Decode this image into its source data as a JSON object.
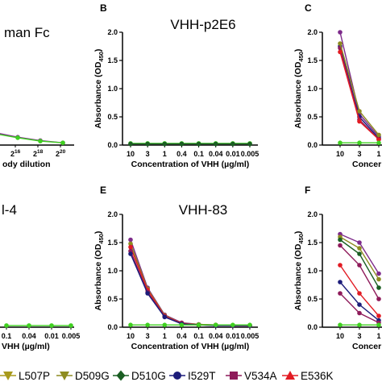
{
  "colors": {
    "L507P": "#a89a1c",
    "D509G": "#8e8c20",
    "D510G": "#1a5e22",
    "I529T": "#1c1c7a",
    "V534A": "#8e1a5a",
    "E536K": "#e21b23",
    "control": "#3fd020",
    "panelA_line": "#7d2a8a"
  },
  "chart_data": [
    {
      "type": "line",
      "panel": "A",
      "title": "man Fc",
      "show_letter": false,
      "xlabel": "ody dilution",
      "x_tick_labels": [
        {
          "base": "2",
          "exp": "16"
        },
        {
          "base": "2",
          "exp": "18"
        },
        {
          "base": "2",
          "exp": "20"
        }
      ],
      "ylim": [
        0,
        2.0
      ],
      "show_yaxis": false,
      "series": [
        {
          "color_key": "panelA_line",
          "values": [
            0.22,
            0.14,
            0.08,
            0.04
          ]
        },
        {
          "color_key": "control",
          "values": [
            0.2,
            0.13,
            0.07,
            0.04
          ]
        }
      ]
    },
    {
      "type": "line",
      "panel": "B",
      "title": "VHH-p2E6",
      "show_letter": true,
      "xlabel": "Concentration of VHH (µg/ml)",
      "ylabel": "Absorbance (OD",
      "ylabel_sub": "450",
      "ylabel_close": ")",
      "categories": [
        "10",
        "3",
        "1",
        "0.4",
        "0.1",
        "0.04",
        "0.01",
        "0.005"
      ],
      "ylim": [
        0,
        2.0
      ],
      "yticks": [
        "0.0",
        "0.5",
        "1.0",
        "1.5",
        "2.0"
      ],
      "show_yaxis": true,
      "series": [
        {
          "color_key": "control",
          "values": [
            0.03,
            0.03,
            0.03,
            0.03,
            0.03,
            0.03,
            0.03,
            0.03
          ]
        },
        {
          "color_key": "D510G",
          "values": [
            0.02,
            0.02,
            0.02,
            0.02,
            0.02,
            0.02,
            0.02,
            0.02
          ]
        }
      ]
    },
    {
      "type": "line",
      "panel": "C",
      "title": "",
      "show_letter": true,
      "xlabel": "Concer",
      "categories": [
        "10",
        "3",
        "1"
      ],
      "ylim": [
        0,
        2.0
      ],
      "yticks": [
        "0.0",
        "0.5",
        "1.0",
        "1.5",
        "2.0"
      ],
      "ylabel": "Absorbance (OD",
      "ylabel_sub": "450",
      "ylabel_close": ")",
      "show_yaxis": true,
      "series": [
        {
          "color_key": "panelA_line",
          "values": [
            2.0,
            0.55,
            0.15
          ]
        },
        {
          "color_key": "I529T",
          "values": [
            1.75,
            0.5,
            0.12
          ]
        },
        {
          "color_key": "V534A",
          "values": [
            1.72,
            0.45,
            0.1
          ]
        },
        {
          "color_key": "D509G",
          "values": [
            1.8,
            0.6,
            0.18
          ]
        },
        {
          "color_key": "E536K",
          "values": [
            1.65,
            0.42,
            0.1
          ]
        },
        {
          "color_key": "control",
          "values": [
            0.04,
            0.04,
            0.04
          ]
        }
      ]
    },
    {
      "type": "line",
      "panel": "D",
      "title": "l-4",
      "show_letter": false,
      "xlabel": "VHH (µg/ml)",
      "categories": [
        "0.1",
        "0.04",
        "0.01",
        "0.005"
      ],
      "ylim": [
        0,
        2.0
      ],
      "show_yaxis": false,
      "series": [
        {
          "color_key": "control",
          "values": [
            0.03,
            0.03,
            0.03,
            0.03
          ]
        }
      ]
    },
    {
      "type": "line",
      "panel": "E",
      "title": "VHH-83",
      "show_letter": true,
      "xlabel": "Concentration of VHH (µg/ml)",
      "ylabel": "Absorbance (OD",
      "ylabel_sub": "450",
      "ylabel_close": ")",
      "categories": [
        "10",
        "3",
        "1",
        "0.4",
        "0.1",
        "0.04",
        "0.01",
        "0.005"
      ],
      "ylim": [
        0,
        2.0
      ],
      "yticks": [
        "0.0",
        "0.5",
        "1.0",
        "1.5",
        "2.0"
      ],
      "show_yaxis": true,
      "series": [
        {
          "color_key": "panelA_line",
          "values": [
            1.55,
            0.7,
            0.22,
            0.08,
            0.05,
            0.04,
            0.03,
            0.03
          ]
        },
        {
          "color_key": "D509G",
          "values": [
            1.48,
            0.68,
            0.21,
            0.07,
            0.05,
            0.04,
            0.03,
            0.03
          ]
        },
        {
          "color_key": "E536K",
          "values": [
            1.42,
            0.66,
            0.2,
            0.07,
            0.04,
            0.04,
            0.03,
            0.03
          ]
        },
        {
          "color_key": "V534A",
          "values": [
            1.35,
            0.62,
            0.19,
            0.06,
            0.04,
            0.03,
            0.03,
            0.03
          ]
        },
        {
          "color_key": "I529T",
          "values": [
            1.3,
            0.6,
            0.18,
            0.06,
            0.04,
            0.03,
            0.03,
            0.03
          ]
        },
        {
          "color_key": "control",
          "values": [
            0.04,
            0.04,
            0.04,
            0.04,
            0.04,
            0.04,
            0.04,
            0.04
          ]
        }
      ]
    },
    {
      "type": "line",
      "panel": "F",
      "title": "",
      "show_letter": true,
      "xlabel": "Concer",
      "categories": [
        "10",
        "3",
        "1"
      ],
      "ylim": [
        0,
        2.0
      ],
      "yticks": [
        "0.0",
        "0.5",
        "1.0",
        "1.5",
        "2.0"
      ],
      "ylabel": "Absorbance (OD",
      "ylabel_sub": "450",
      "ylabel_close": ")",
      "show_yaxis": true,
      "series": [
        {
          "color_key": "panelA_line",
          "values": [
            1.65,
            1.5,
            0.95
          ]
        },
        {
          "color_key": "D509G",
          "values": [
            1.6,
            1.4,
            0.85
          ]
        },
        {
          "color_key": "D510G",
          "values": [
            1.55,
            1.3,
            0.7
          ]
        },
        {
          "color_key": "V534A",
          "values": [
            1.45,
            1.1,
            0.5
          ]
        },
        {
          "color_key": "E536K",
          "values": [
            1.1,
            0.6,
            0.2
          ]
        },
        {
          "color_key": "I529T",
          "values": [
            0.8,
            0.4,
            0.12
          ]
        },
        {
          "color_key": "V534A",
          "values": [
            0.6,
            0.25,
            0.08
          ]
        },
        {
          "color_key": "control",
          "values": [
            0.04,
            0.04,
            0.04
          ]
        }
      ]
    }
  ],
  "legend": [
    {
      "label": "L507P",
      "color_key": "L507P",
      "marker": "triangle-down"
    },
    {
      "label": "D509G",
      "color_key": "D509G",
      "marker": "triangle-down"
    },
    {
      "label": "D510G",
      "color_key": "D510G",
      "marker": "diamond"
    },
    {
      "label": "I529T",
      "color_key": "I529T",
      "marker": "circle"
    },
    {
      "label": "V534A",
      "color_key": "V534A",
      "marker": "square"
    },
    {
      "label": "E536K",
      "color_key": "E536K",
      "marker": "triangle-up"
    }
  ]
}
